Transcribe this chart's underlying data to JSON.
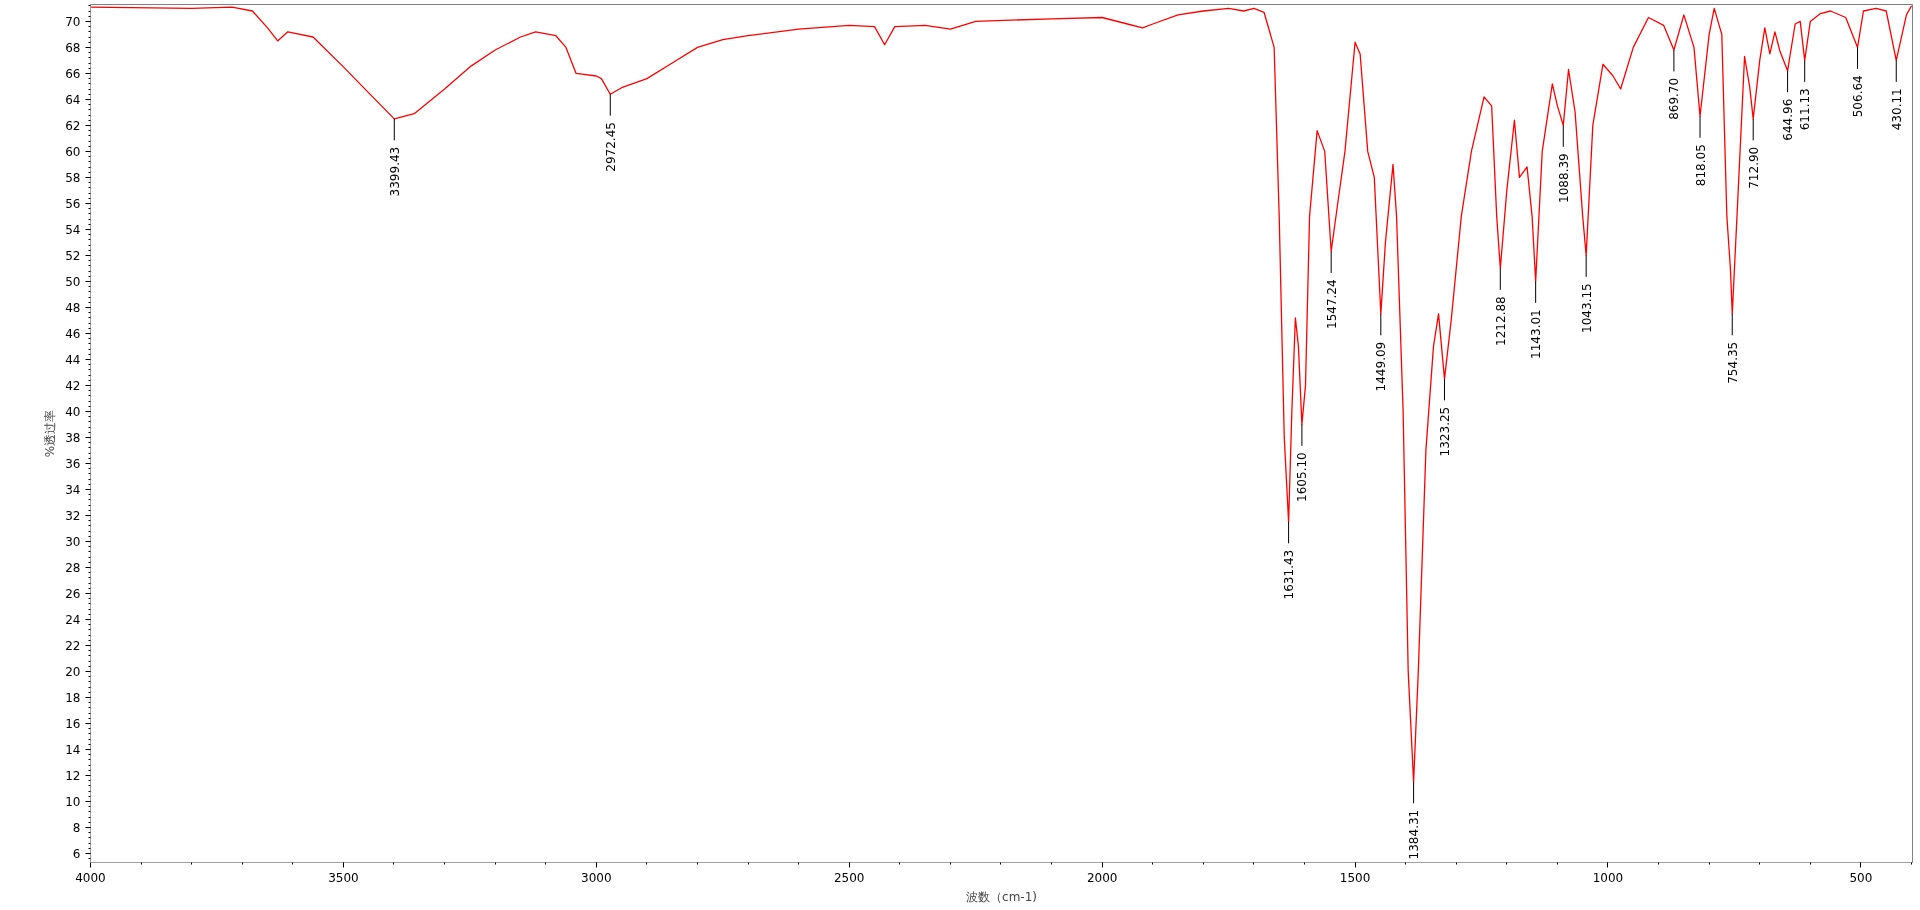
{
  "chart_data": {
    "type": "line",
    "xlabel": "波数（cm-1)",
    "ylabel": "%透过率",
    "xlim": [
      4000,
      398
    ],
    "ylim": [
      5.3,
      71.3
    ],
    "xticks": [
      4000,
      3500,
      3000,
      2500,
      2000,
      1500,
      1000,
      500
    ],
    "yticks": [
      6,
      8,
      10,
      12,
      14,
      16,
      18,
      20,
      22,
      24,
      26,
      28,
      30,
      32,
      34,
      36,
      38,
      40,
      42,
      44,
      46,
      48,
      50,
      52,
      54,
      56,
      58,
      60,
      62,
      64,
      66,
      68,
      70
    ],
    "grid": false,
    "marker": "none",
    "line_style": "solid",
    "series": [
      {
        "color": "#ff0000",
        "x": [
          4000,
          3800,
          3720,
          3680,
          3650,
          3630,
          3610,
          3560,
          3500,
          3450,
          3399.43,
          3360,
          3300,
          3250,
          3200,
          3150,
          3120,
          3080,
          3060,
          3040,
          3000,
          2990,
          2972.45,
          2950,
          2900,
          2850,
          2800,
          2750,
          2700,
          2600,
          2500,
          2450,
          2430,
          2410,
          2350,
          2300,
          2250,
          2100,
          2000,
          1950,
          1920,
          1900,
          1850,
          1800,
          1750,
          1720,
          1700,
          1680,
          1660,
          1650,
          1640,
          1631.43,
          1625,
          1618,
          1612,
          1605.1,
          1598,
          1590,
          1575,
          1560,
          1547.24,
          1535,
          1520,
          1500,
          1490,
          1475,
          1462,
          1449.09,
          1440,
          1425,
          1418,
          1405,
          1395,
          1384.31,
          1375,
          1360,
          1345,
          1335,
          1323.25,
          1310,
          1290,
          1270,
          1245,
          1230,
          1220,
          1212.88,
          1200,
          1185,
          1175,
          1160,
          1150,
          1143.01,
          1130,
          1110,
          1100,
          1088.39,
          1078,
          1065,
          1050,
          1043.15,
          1030,
          1010,
          990,
          975,
          950,
          920,
          890,
          869.7,
          850,
          830,
          818.05,
          800,
          790,
          775,
          765,
          758,
          754.35,
          745,
          730,
          720,
          712.9,
          700,
          690,
          680,
          670,
          660,
          644.96,
          630,
          620,
          611.13,
          600,
          580,
          560,
          530,
          506.64,
          495,
          470,
          450,
          430.11,
          410,
          400
        ],
        "values": [
          71.1,
          71.0,
          71.1,
          70.8,
          69.5,
          68.5,
          69.2,
          68.8,
          66.5,
          64.5,
          62.5,
          62.9,
          64.8,
          66.5,
          67.8,
          68.8,
          69.2,
          68.9,
          68.0,
          66.0,
          65.8,
          65.6,
          64.4,
          64.9,
          65.6,
          66.8,
          68.0,
          68.6,
          68.9,
          69.4,
          69.7,
          69.6,
          68.2,
          69.6,
          69.7,
          69.4,
          70.0,
          70.2,
          70.3,
          69.8,
          69.5,
          69.8,
          70.5,
          70.8,
          71.0,
          70.8,
          71.0,
          70.7,
          68.0,
          55,
          38,
          31.5,
          40,
          47.2,
          45,
          39,
          42,
          55,
          61.6,
          60,
          52.3,
          55.8,
          60,
          68.4,
          67.5,
          60,
          58,
          47.5,
          53,
          59,
          55,
          40,
          20,
          11.5,
          20,
          37,
          45,
          47.5,
          42.5,
          47,
          55,
          60,
          64.2,
          63.5,
          55,
          51,
          57,
          62.4,
          58,
          58.8,
          55,
          50,
          60,
          65.2,
          63.5,
          62,
          66.3,
          63,
          55,
          52,
          62,
          66.7,
          65.8,
          64.8,
          68,
          70.3,
          69.7,
          67.8,
          70.5,
          68,
          62.7,
          69,
          71,
          69,
          55,
          51,
          47.5,
          55,
          67.3,
          65,
          62.5,
          67,
          69.5,
          67.5,
          69.2,
          67.7,
          66.2,
          69.8,
          70,
          67,
          70,
          70.6,
          70.8,
          70.3,
          68,
          70.8,
          71,
          70.8,
          67,
          70.5,
          71.2
        ]
      }
    ],
    "annotations": [
      {
        "text": "3399.43",
        "x": 3399.43,
        "y": 62.5
      },
      {
        "text": "2972.45",
        "x": 2972.45,
        "y": 64.4
      },
      {
        "text": "1631.43",
        "x": 1631.43,
        "y": 31.5
      },
      {
        "text": "1605.10",
        "x": 1605.1,
        "y": 39
      },
      {
        "text": "1547.24",
        "x": 1547.24,
        "y": 52.3
      },
      {
        "text": "1449.09",
        "x": 1449.09,
        "y": 47.5
      },
      {
        "text": "1384.31",
        "x": 1384.31,
        "y": 11.5
      },
      {
        "text": "1323.25",
        "x": 1323.25,
        "y": 42.5
      },
      {
        "text": "1212.88",
        "x": 1212.88,
        "y": 51
      },
      {
        "text": "1143.01",
        "x": 1143.01,
        "y": 50
      },
      {
        "text": "1088.39",
        "x": 1088.39,
        "y": 62
      },
      {
        "text": "1043.15",
        "x": 1043.15,
        "y": 52
      },
      {
        "text": "869.70",
        "x": 869.7,
        "y": 67.8
      },
      {
        "text": "818.05",
        "x": 818.05,
        "y": 62.7
      },
      {
        "text": "754.35",
        "x": 754.35,
        "y": 47.5
      },
      {
        "text": "712.90",
        "x": 712.9,
        "y": 62.5
      },
      {
        "text": "644.96",
        "x": 644.96,
        "y": 66.2
      },
      {
        "text": "611.13",
        "x": 611.13,
        "y": 67
      },
      {
        "text": "506.64",
        "x": 506.64,
        "y": 68
      },
      {
        "text": "430.11",
        "x": 430.11,
        "y": 67
      }
    ]
  }
}
